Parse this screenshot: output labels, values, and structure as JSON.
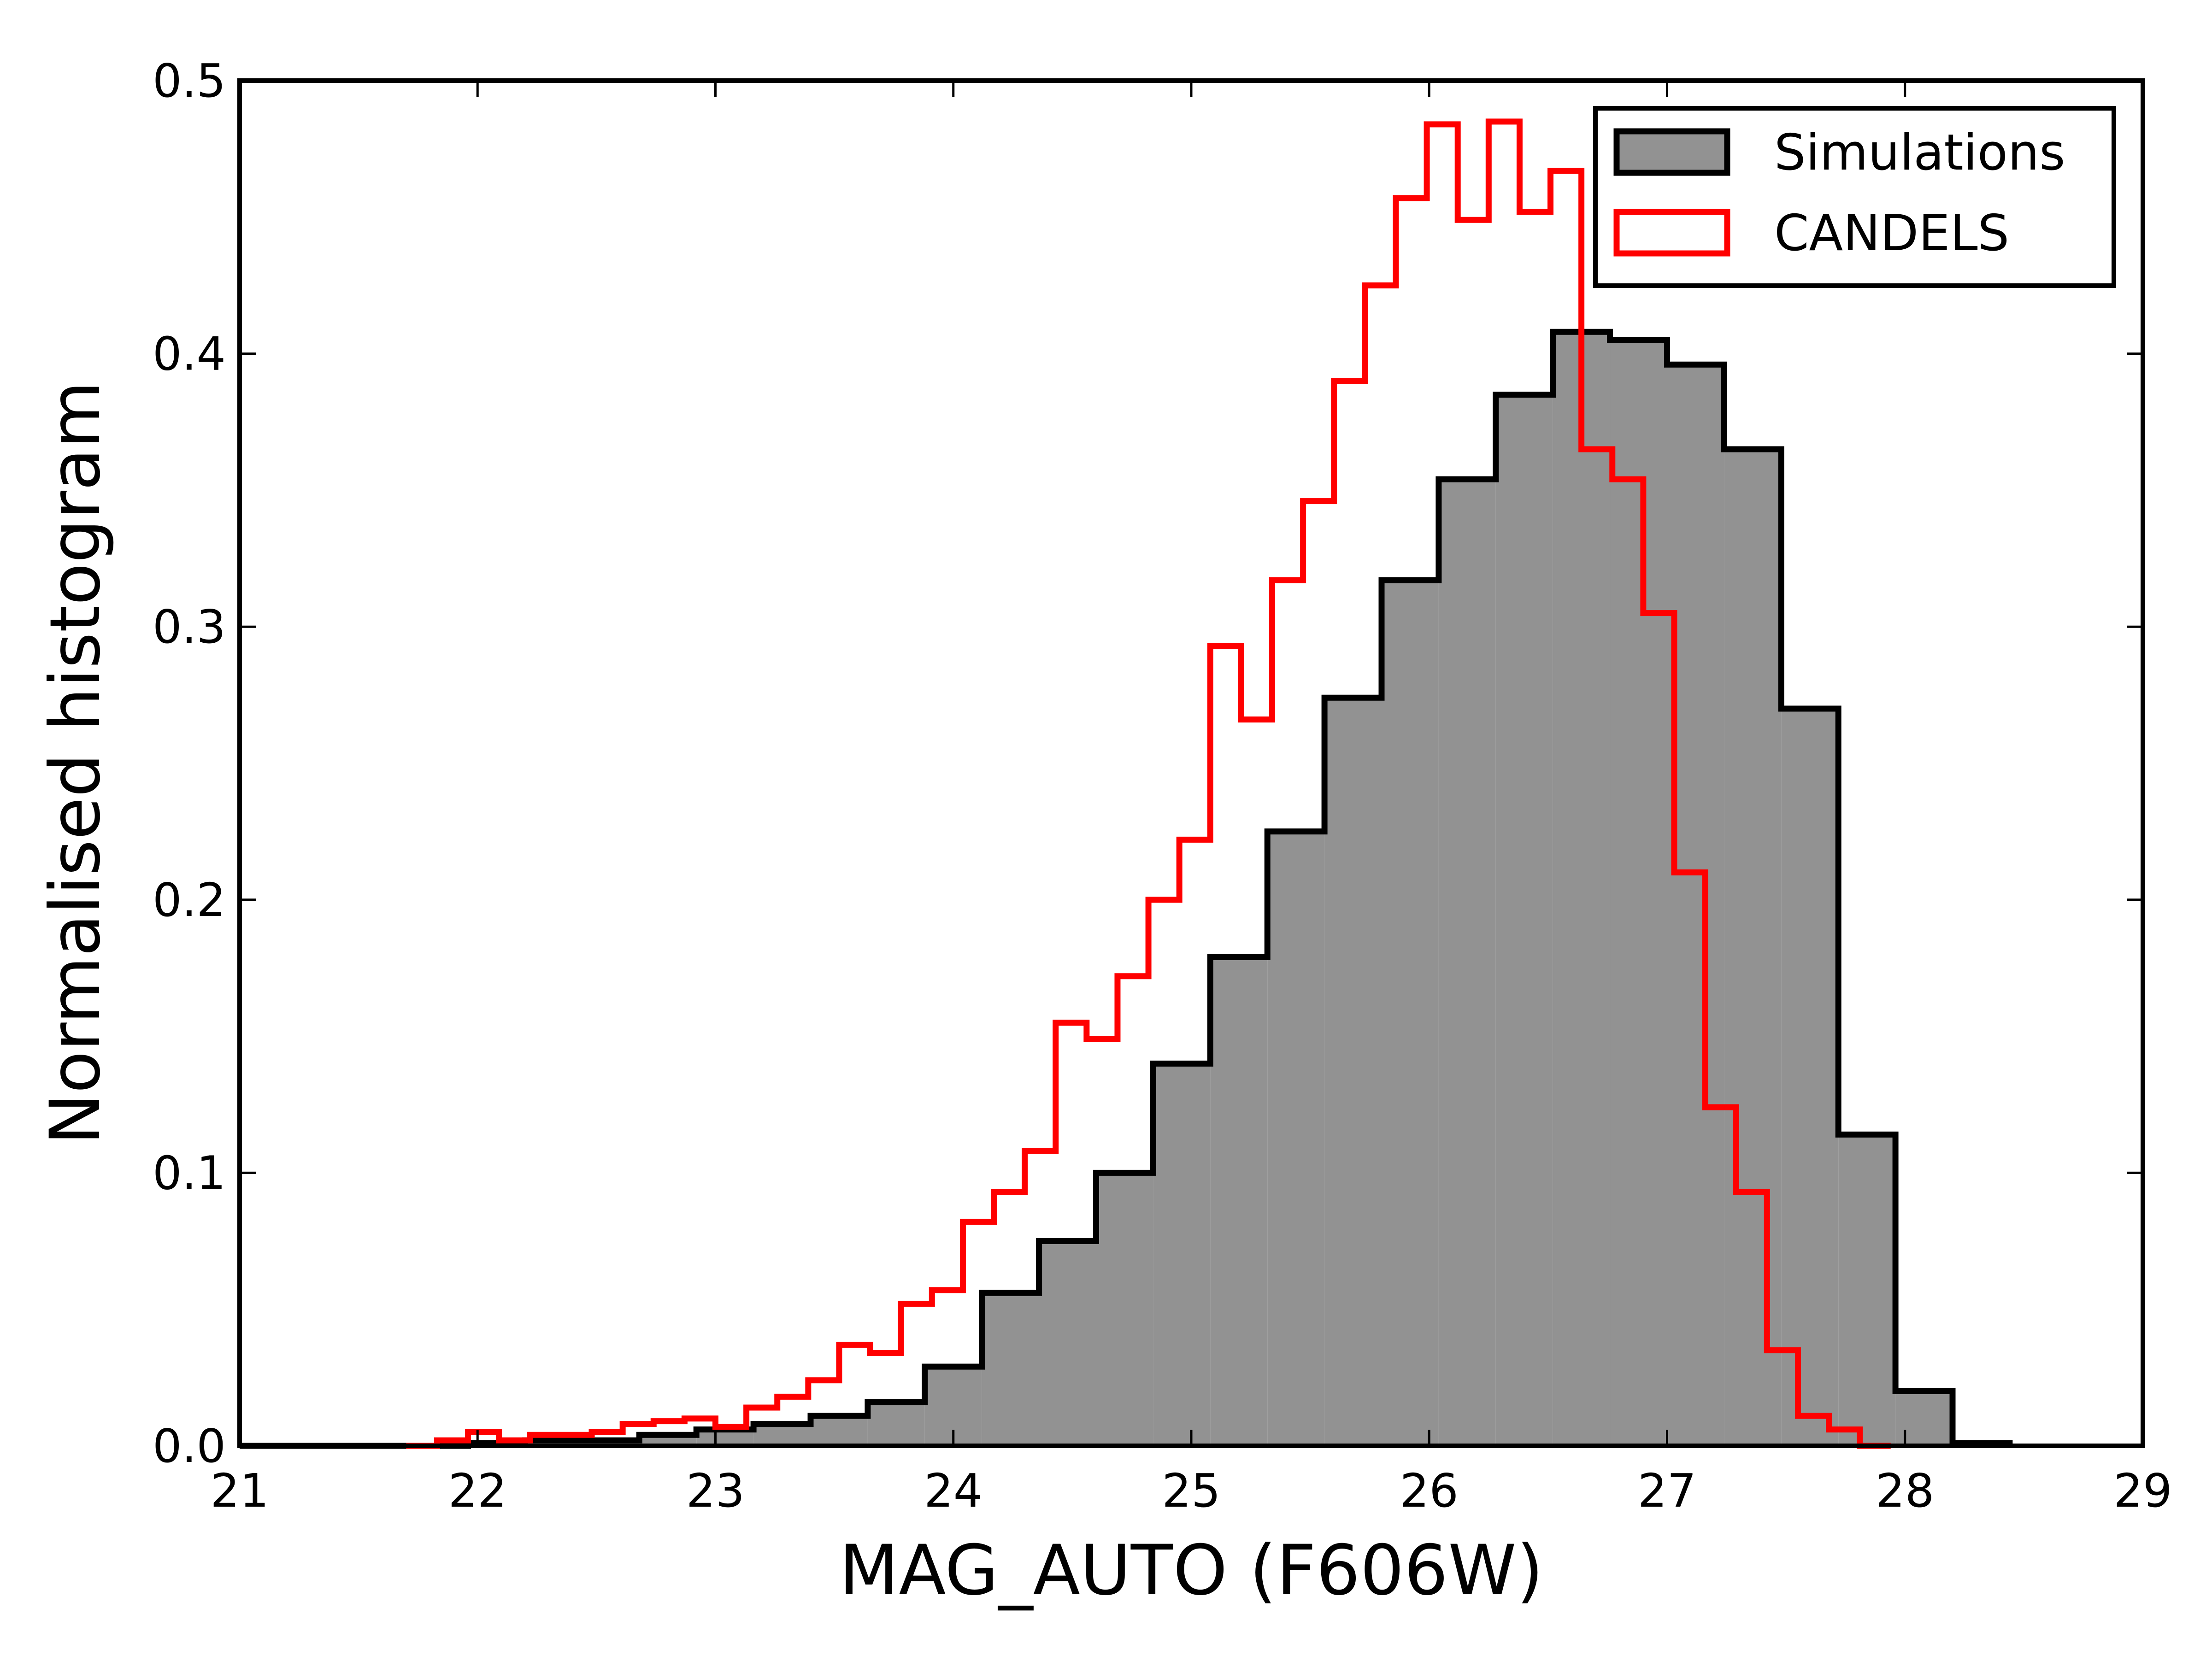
{
  "chart_data": {
    "type": "histogram",
    "xlabel": "MAG_AUTO (F606W)",
    "ylabel": "Normalised histogram",
    "xlim": [
      21,
      29
    ],
    "ylim": [
      0,
      0.5
    ],
    "xticks": [
      "21",
      "22",
      "23",
      "24",
      "25",
      "26",
      "27",
      "28",
      "29"
    ],
    "yticks": [
      "0.0",
      "0.1",
      "0.2",
      "0.3",
      "0.4",
      "0.5"
    ],
    "grid": false,
    "legend_position": "top-right",
    "series": [
      {
        "name": "Simulations",
        "style": "filled",
        "fill_color": "#929292",
        "edge_color": "#000000",
        "bin_edges": [
          21.0,
          21.24,
          21.48,
          21.72,
          21.96,
          22.2,
          22.44,
          22.68,
          22.92,
          23.16,
          23.4,
          23.64,
          23.88,
          24.12,
          24.36,
          24.6,
          24.84,
          25.08,
          25.32,
          25.56,
          25.8,
          26.04,
          26.28,
          26.52,
          26.76,
          27.0,
          27.24,
          27.48,
          27.72,
          27.96,
          28.2,
          28.44
        ],
        "values": [
          0.0,
          0.0,
          0.0,
          0.0,
          0.001,
          0.002,
          0.002,
          0.004,
          0.006,
          0.008,
          0.011,
          0.016,
          0.029,
          0.056,
          0.075,
          0.1,
          0.14,
          0.179,
          0.225,
          0.274,
          0.317,
          0.354,
          0.385,
          0.408,
          0.405,
          0.396,
          0.365,
          0.27,
          0.114,
          0.02,
          0.001
        ]
      },
      {
        "name": "CANDELS",
        "style": "step",
        "edge_color": "#ff0000",
        "bin_edges": [
          21.7,
          21.83,
          21.96,
          22.09,
          22.22,
          22.35,
          22.48,
          22.61,
          22.74,
          22.87,
          23.0,
          23.13,
          23.26,
          23.39,
          23.52,
          23.65,
          23.78,
          23.91,
          24.04,
          24.17,
          24.3,
          24.43,
          24.56,
          24.69,
          24.82,
          24.95,
          25.08,
          25.21,
          25.34,
          25.47,
          25.6,
          25.73,
          25.86,
          25.99,
          26.12,
          26.25,
          26.38,
          26.51,
          26.64,
          26.77,
          26.9,
          27.03,
          27.16,
          27.29,
          27.42,
          27.55,
          27.68,
          27.81,
          27.94
        ],
        "values": [
          0.0,
          0.002,
          0.005,
          0.002,
          0.004,
          0.004,
          0.005,
          0.008,
          0.009,
          0.01,
          0.007,
          0.014,
          0.018,
          0.024,
          0.037,
          0.034,
          0.052,
          0.057,
          0.082,
          0.093,
          0.108,
          0.155,
          0.149,
          0.172,
          0.2,
          0.222,
          0.293,
          0.266,
          0.317,
          0.346,
          0.39,
          0.425,
          0.457,
          0.484,
          0.449,
          0.485,
          0.452,
          0.467,
          0.365,
          0.354,
          0.305,
          0.21,
          0.124,
          0.093,
          0.035,
          0.011,
          0.006,
          0.0
        ]
      }
    ]
  }
}
